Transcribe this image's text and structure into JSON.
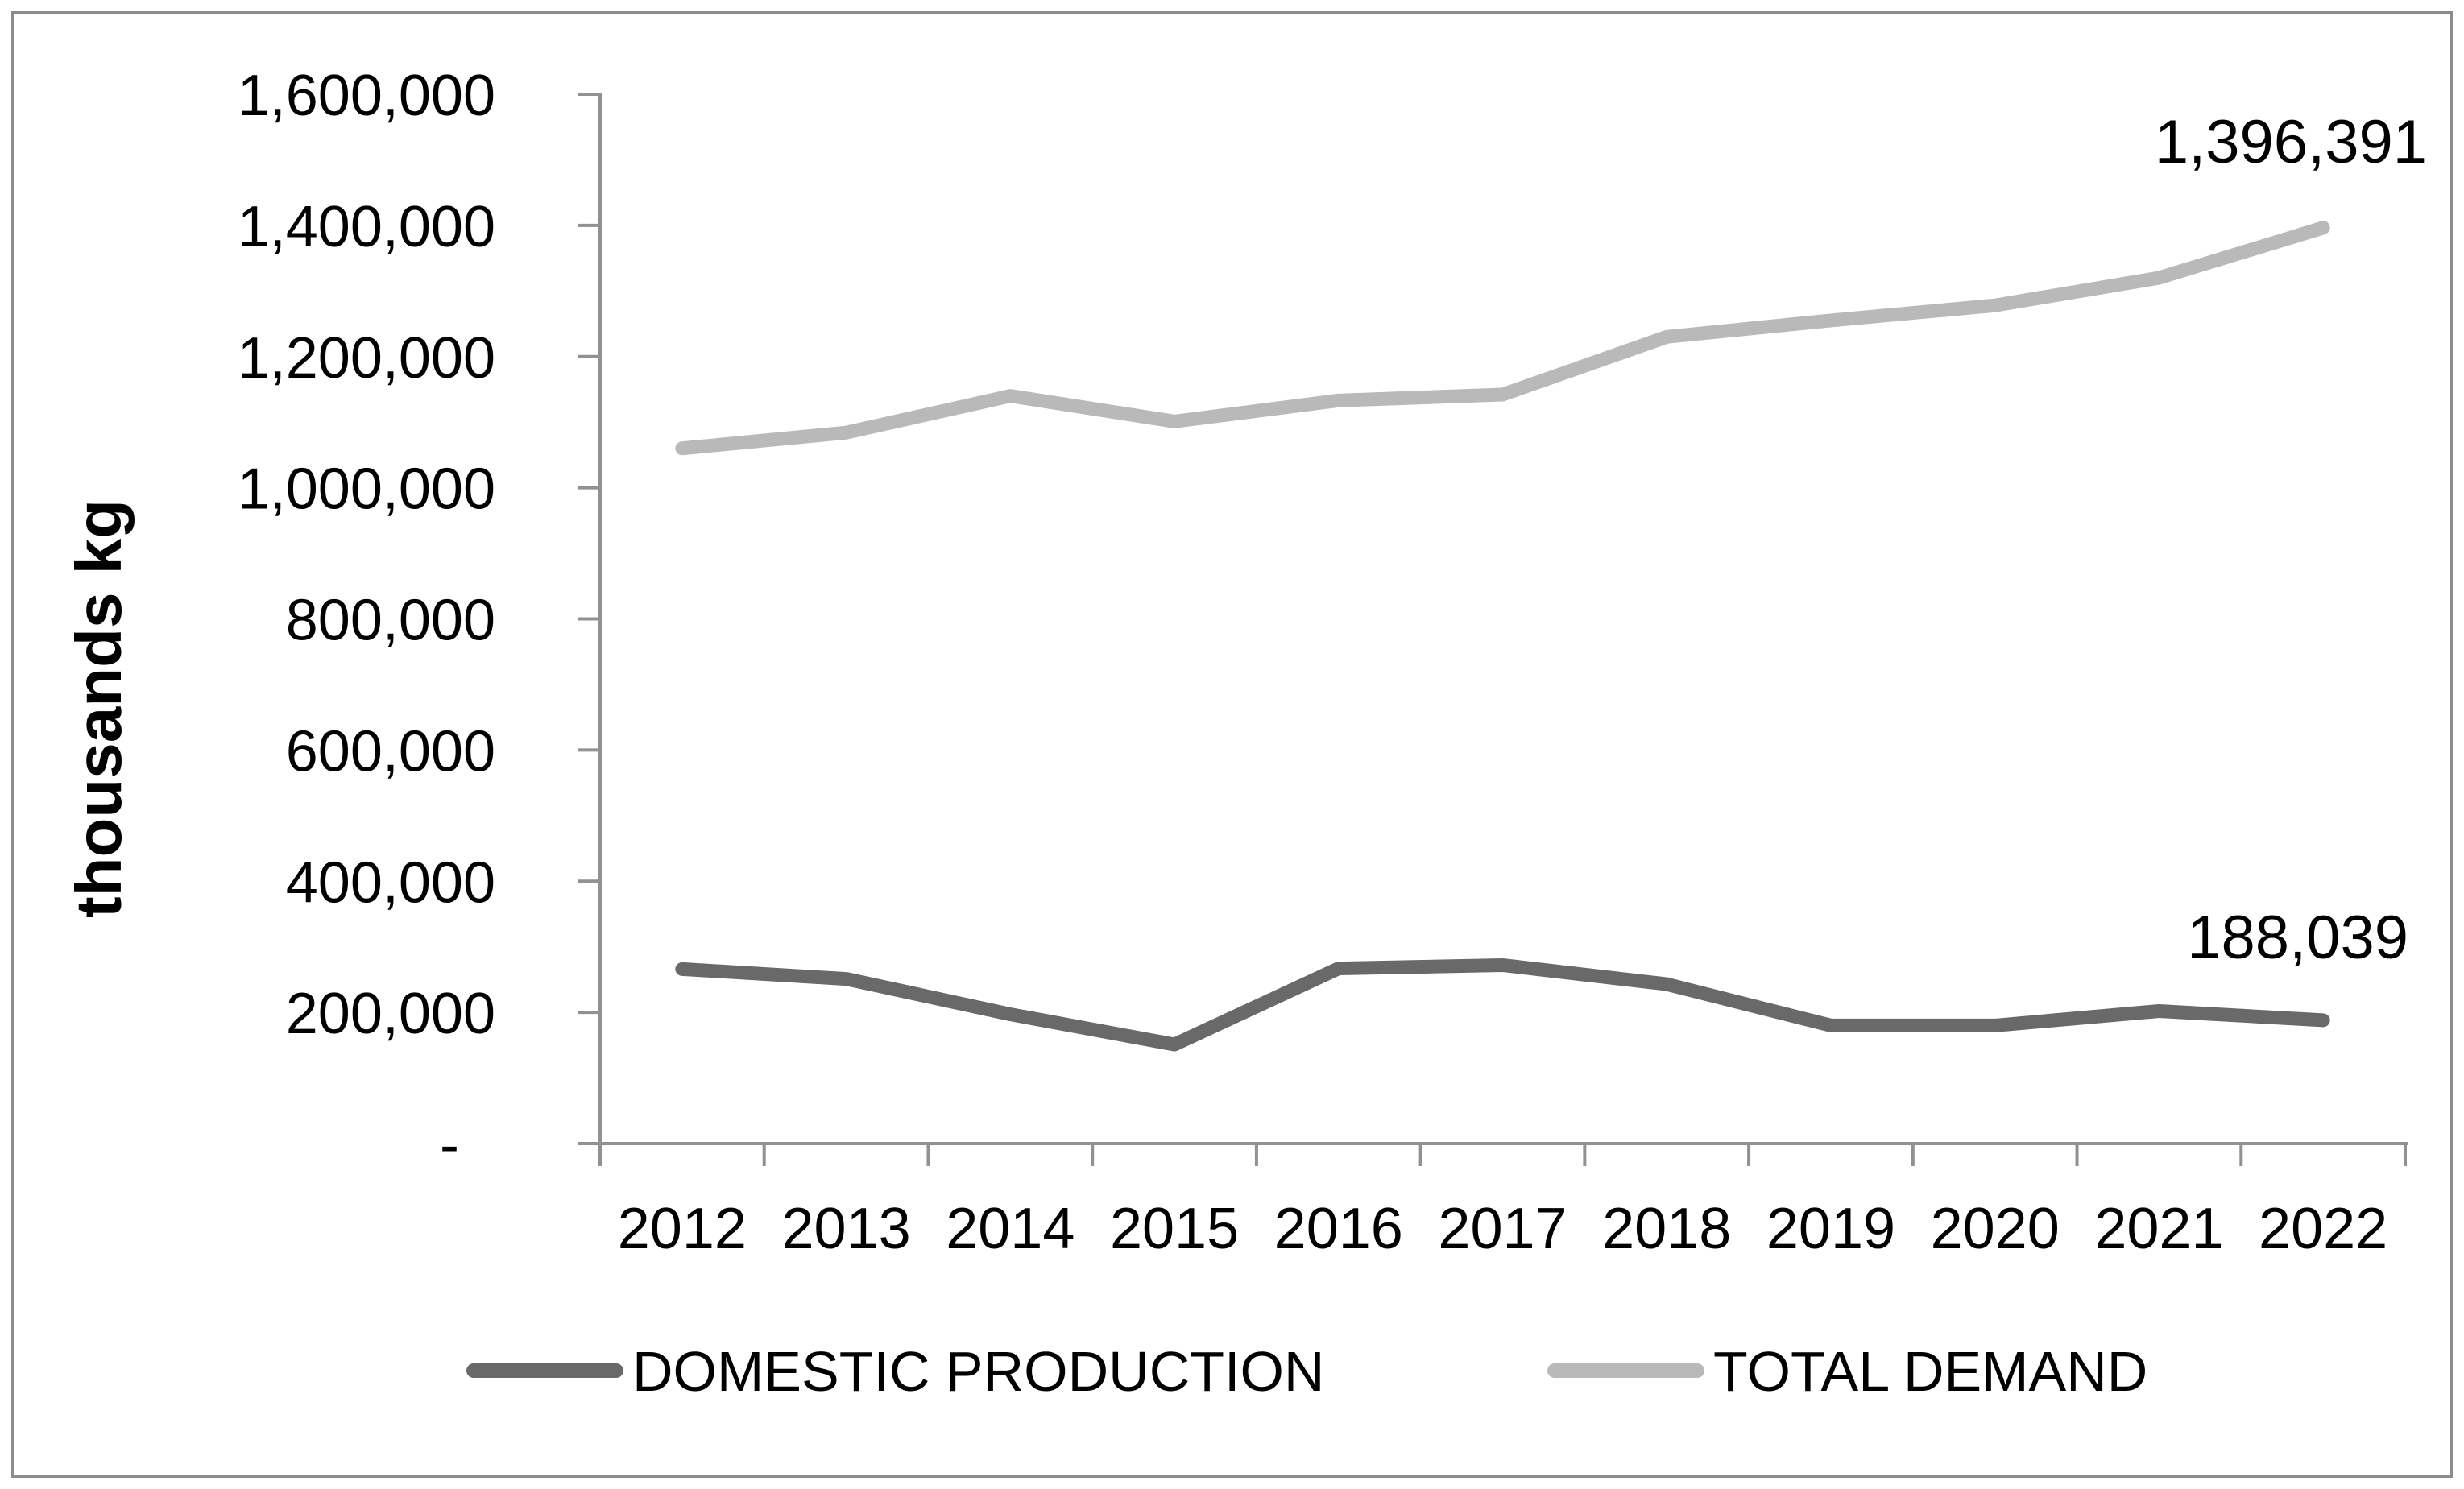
{
  "background": "#ffffff",
  "border_color": "#8c8c8c",
  "axis_color": "#919191",
  "text_color": "#000000",
  "chart_data": {
    "type": "line",
    "title": "",
    "xlabel": "",
    "ylabel": "thousands kg",
    "grid": false,
    "legend_position": "bottom",
    "categories": [
      "2012",
      "2013",
      "2014",
      "2015",
      "2016",
      "2017",
      "2018",
      "2019",
      "2020",
      "2021",
      "2022"
    ],
    "series": [
      {
        "name": "DOMESTIC PRODUCTION",
        "color": "#696969",
        "values": [
          266000,
          251000,
          197000,
          151000,
          267000,
          272000,
          243000,
          180000,
          180000,
          202000,
          188039
        ],
        "end_label": "188,039"
      },
      {
        "name": "TOTAL DEMAND",
        "color": "#b9b9b9",
        "values": [
          1060000,
          1084000,
          1140000,
          1101000,
          1133000,
          1142000,
          1230000,
          1255000,
          1278000,
          1320000,
          1396391
        ],
        "end_label": "1,396,391"
      }
    ],
    "y_axis": {
      "min": 0,
      "max": 1600000,
      "step": 200000,
      "tick_labels": [
        "-",
        "200,000",
        "400,000",
        "600,000",
        "800,000",
        "1,000,000",
        "1,200,000",
        "1,400,000",
        "1,600,000"
      ]
    }
  }
}
